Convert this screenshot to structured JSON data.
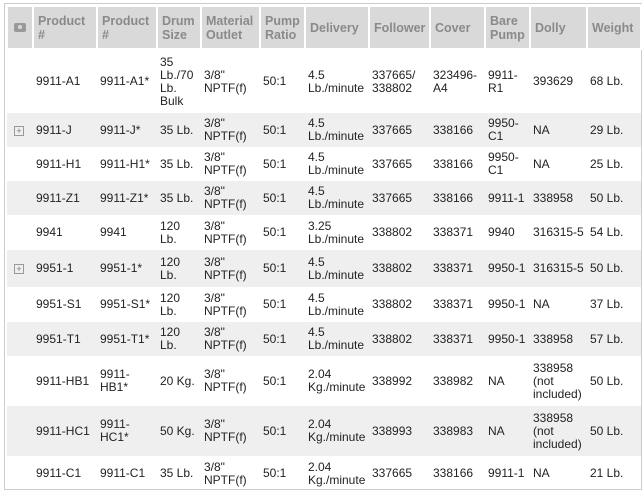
{
  "columns": [
    "",
    "Product #",
    "Product #",
    "Drum Size",
    "Material Outlet",
    "Pump Ratio",
    "Delivery",
    "Follower",
    "Cover",
    "Bare Pump",
    "Dolly",
    "Weight"
  ],
  "rows": [
    {
      "expand": false,
      "cells": [
        "9911-A1",
        "9911-A1*",
        "35 Lb./70 Lb. Bulk",
        "3/8\" NPTF(f)",
        "50:1",
        "4.5 Lb./minute",
        "337665/ 338802",
        "323496-A4",
        "9911-R1",
        "393629",
        "68 Lb."
      ]
    },
    {
      "expand": true,
      "cells": [
        "9911-J",
        "9911-J*",
        "35 Lb.",
        "3/8\" NPTF(f)",
        "50:1",
        "4.5 Lb./minute",
        "337665",
        "338166",
        "9950-C1",
        "NA",
        "29 Lb."
      ]
    },
    {
      "expand": false,
      "cells": [
        "9911-H1",
        "9911-H1*",
        "35 Lb.",
        "3/8\" NPTF(f)",
        "50:1",
        "4.5 Lb./minute",
        "337665",
        "338166",
        "9950-C1",
        "NA",
        "25 Lb."
      ]
    },
    {
      "expand": false,
      "cells": [
        "9911-Z1",
        "9911-Z1*",
        "35 Lb.",
        "3/8\" NPTF(f)",
        "50:1",
        "4.5 Lb./minute",
        "337665",
        "338166",
        "9911-1",
        "338958",
        "50 Lb."
      ]
    },
    {
      "expand": false,
      "cells": [
        "9941",
        "9941",
        "120 Lb.",
        "3/8\" NPTF(f)",
        "50:1",
        "3.25 Lb./minute",
        "338802",
        "338371",
        "9940",
        "316315-5",
        "54 Lb."
      ]
    },
    {
      "expand": true,
      "cells": [
        "9951-1",
        "9951-1*",
        "120 Lb.",
        "3/8\" NPTF(f)",
        "50:1",
        "4.5 Lb./minute",
        "338802",
        "338371",
        "9950-1",
        "316315-5",
        "50 Lb."
      ]
    },
    {
      "expand": false,
      "cells": [
        "9951-S1",
        "9951-S1*",
        "120 Lb.",
        "3/8\" NPTF(f)",
        "50:1",
        "4.5 Lb./minute",
        "338802",
        "338371",
        "9950-1",
        "NA",
        "37 Lb."
      ]
    },
    {
      "expand": false,
      "cells": [
        "9951-T1",
        "9951-T1*",
        "120 Lb.",
        "3/8\" NPTF(f)",
        "50:1",
        "4.5 Lb./minute",
        "338802",
        "338371",
        "9950-1",
        "338958",
        "57 Lb."
      ]
    },
    {
      "expand": false,
      "cells": [
        "9911-HB1",
        "9911-HB1*",
        "20 Kg.",
        "3/8\" NPTF(f)",
        "50:1",
        "2.04 Kg./minute",
        "338992",
        "338982",
        "NA",
        "338958 (not included)",
        "50 Lb."
      ]
    },
    {
      "expand": false,
      "cells": [
        "9911-HC1",
        "9911-HC1*",
        "50 Kg.",
        "3/8\" NPTF(f)",
        "50:1",
        "2.04 Kg./minute",
        "338993",
        "338983",
        "NA",
        "338958 (not included)",
        "50 Lb."
      ]
    },
    {
      "expand": false,
      "cells": [
        "9911-C1",
        "9911-C1",
        "35 Lb.",
        "3/8\" NPTF(f)",
        "50:1",
        "2.04 Kg./minute",
        "337665",
        "338166",
        "9911-1",
        "NA",
        "21 Lb."
      ]
    }
  ],
  "row_heights": [
    64,
    34,
    34,
    34,
    35,
    37,
    35,
    34,
    50,
    50,
    35
  ]
}
